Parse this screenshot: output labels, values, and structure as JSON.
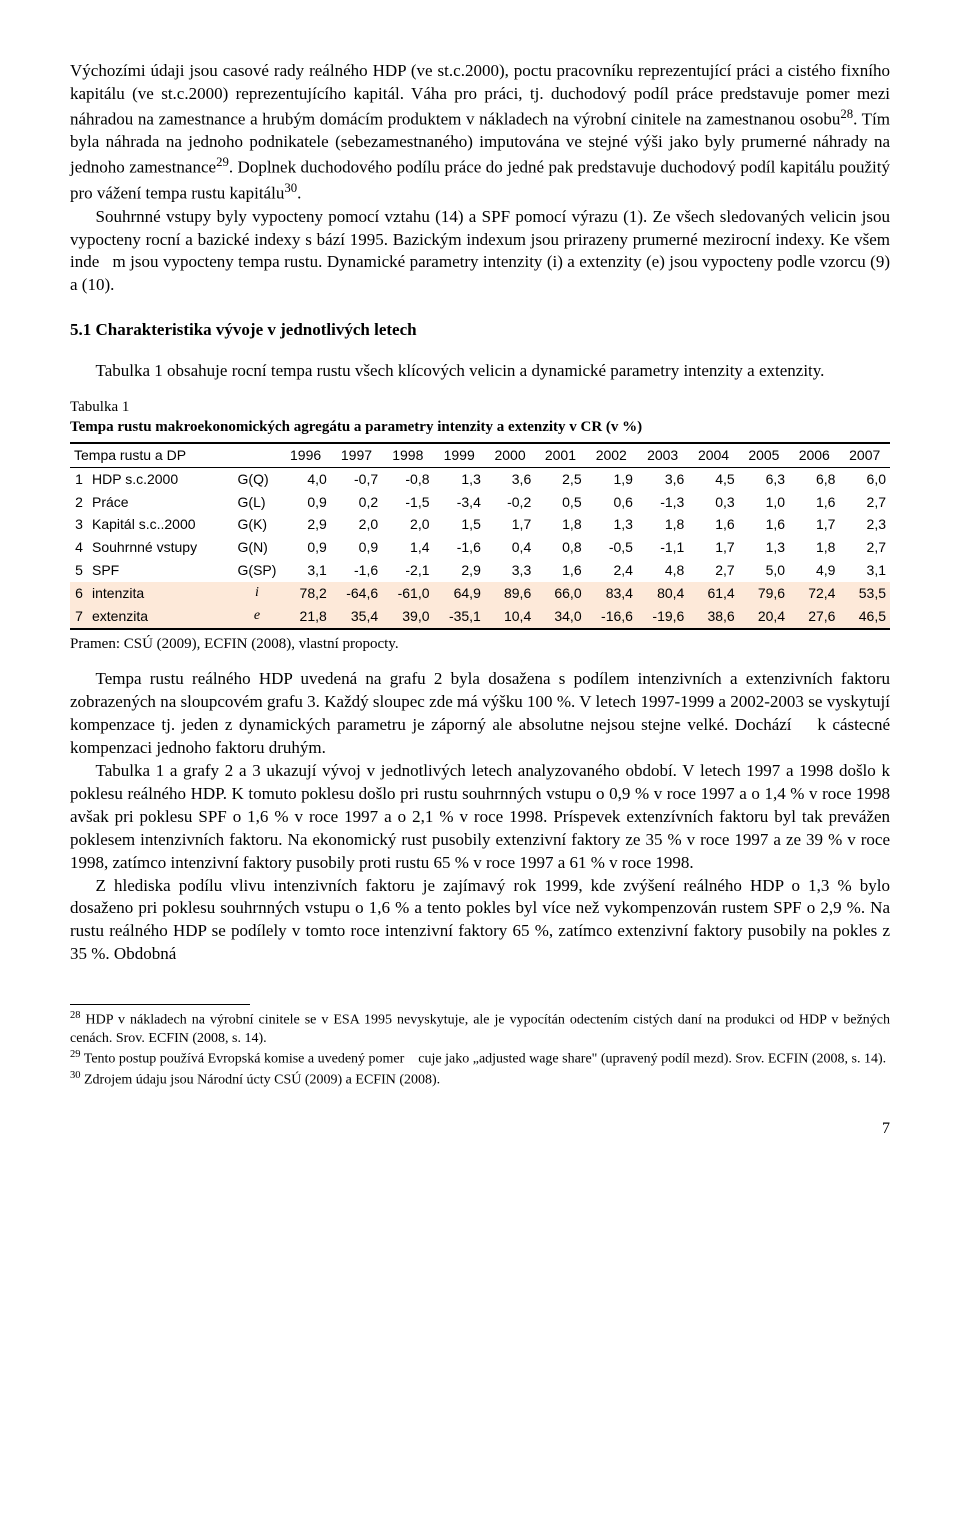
{
  "para1": "Výchozími údaji jsou casové rady reálného HDP (ve st.c.2000), poctu pracovníku reprezentující práci a cistého fixního kapitálu (ve st.c.2000) reprezentujícího kapitál. Váha pro práci, tj. duchodový podíl práce predstavuje pomer mezi náhradou na zamestnance a hrubým domácím produktem v nákladech na výrobní cinitele na zamestnanou osobu",
  "para1_sup": "28",
  "para1b": ". Tím byla náhrada na jednoho podnikatele (sebezamestnaného) imputována ve stejné výši jako byly prumerné náhrady na jednoho zamestnance",
  "para1_sup2": "29",
  "para1c": ". Doplnek duchodového podílu práce do jedné pak predstavuje duchodový podíl kapitálu použitý pro vážení tempa rustu kapitálu",
  "para1_sup3": "30",
  "para1d": ".",
  "para2": "Souhrnné vstupy byly vypocteny pomocí vztahu (14) a SPF pomocí výrazu (1). Ze všech sledovaných velicin jsou vypocteny rocní a bazické indexy s bází 1995. Bazickým indexum jsou prirazeny prumerné mezirocní indexy. Ke všem inde   m jsou vypocteny tempa rustu. Dynamické parametry intenzity (i) a extenzity (e) jsou vypocteny podle vzorcu (9) a (10).",
  "heading": "5.1 Charakteristika vývoje v jednotlivých letech",
  "para3": "Tabulka 1 obsahuje rocní tempa rustu všech klícových velicin a dynamické parametry intenzity a extenzity.",
  "table": {
    "caption": "Tabulka 1",
    "title": "Tempa rustu makroekonomických agregátu a parametry intenzity a extenzity v CR (v %)",
    "head_label": "Tempa rustu a DP",
    "years": [
      "1996",
      "1997",
      "1998",
      "1999",
      "2000",
      "2001",
      "2002",
      "2003",
      "2004",
      "2005",
      "2006",
      "2007"
    ],
    "rows": [
      {
        "idx": "1",
        "label": "HDP s.c.2000",
        "sym": "G(Q)",
        "vals": [
          "4,0",
          "-0,7",
          "-0,8",
          "1,3",
          "3,6",
          "2,5",
          "1,9",
          "3,6",
          "4,5",
          "6,3",
          "6,8",
          "6,0"
        ],
        "hl": false
      },
      {
        "idx": "2",
        "label": "Práce",
        "sym": "G(L)",
        "vals": [
          "0,9",
          "0,2",
          "-1,5",
          "-3,4",
          "-0,2",
          "0,5",
          "0,6",
          "-1,3",
          "0,3",
          "1,0",
          "1,6",
          "2,7"
        ],
        "hl": false
      },
      {
        "idx": "3",
        "label": "Kapitál s.c..2000",
        "sym": "G(K)",
        "vals": [
          "2,9",
          "2,0",
          "2,0",
          "1,5",
          "1,7",
          "1,8",
          "1,3",
          "1,8",
          "1,6",
          "1,6",
          "1,7",
          "2,3"
        ],
        "hl": false
      },
      {
        "idx": "4",
        "label": "Souhrnné vstupy",
        "sym": "G(N)",
        "vals": [
          "0,9",
          "0,9",
          "1,4",
          "-1,6",
          "0,4",
          "0,8",
          "-0,5",
          "-1,1",
          "1,7",
          "1,3",
          "1,8",
          "2,7"
        ],
        "hl": false
      },
      {
        "idx": "5",
        "label": "SPF",
        "sym": "G(SP)",
        "vals": [
          "3,1",
          "-1,6",
          "-2,1",
          "2,9",
          "3,3",
          "1,6",
          "2,4",
          "4,8",
          "2,7",
          "5,0",
          "4,9",
          "3,1"
        ],
        "hl": false
      },
      {
        "idx": "6",
        "label": "intenzita",
        "sym": "i",
        "vals": [
          "78,2",
          "-64,6",
          "-61,0",
          "64,9",
          "89,6",
          "66,0",
          "83,4",
          "80,4",
          "61,4",
          "79,6",
          "72,4",
          "53,5"
        ],
        "hl": true
      },
      {
        "idx": "7",
        "label": "extenzita",
        "sym": "e",
        "vals": [
          "21,8",
          "35,4",
          "39,0",
          "-35,1",
          "10,4",
          "34,0",
          "-16,6",
          "-19,6",
          "38,6",
          "20,4",
          "27,6",
          "46,5"
        ],
        "hl": true
      }
    ],
    "source": "Pramen: CSÚ (2009), ECFIN (2008), vlastní propocty.",
    "bg_highlight": "#fde9d9"
  },
  "para4": "Tempa rustu reálného HDP uvedená na grafu 2 byla dosažena s podílem intenzivních a extenzivních faktoru zobrazených na sloupcovém grafu 3. Každý sloupec zde má výšku 100 %. V letech 1997-1999 a 2002-2003 se vyskytují kompenzace tj. jeden z dynamických parametru je záporný ale absolutne nejsou stejne velké. Dochází    k cástecné kompenzaci jednoho faktoru druhým.",
  "para5": "Tabulka 1 a grafy 2 a 3 ukazují vývoj v jednotlivých letech analyzovaného období. V letech 1997 a 1998 došlo k poklesu reálného HDP. K tomuto poklesu došlo pri rustu souhrnných vstupu o 0,9 % v roce 1997 a o 1,4 % v roce 1998 avšak pri poklesu SPF o 1,6 % v roce 1997 a o 2,1 % v roce 1998. Príspevek extenzívních faktoru byl tak prevážen poklesem intenzivních faktoru. Na ekonomický rust pusobily extenzivní faktory ze 35 % v roce 1997 a ze 39 % v roce 1998, zatímco intenzivní faktory pusobily proti rustu 65 % v roce 1997 a 61 % v roce 1998.",
  "para6": "Z hlediska podílu vlivu intenzivních faktoru je zajímavý rok 1999, kde zvýšení reálného HDP o 1,3 % bylo dosaženo pri poklesu souhrnných vstupu o 1,6 % a tento pokles byl více než vykompenzován rustem SPF o 2,9 %. Na rustu reálného HDP se podílely v tomto roce intenzivní faktory 65 %, zatímco extenzivní faktory pusobily na pokles z 35 %. Obdobná",
  "footnotes": {
    "f28_sup": "28",
    "f28": " HDP v nákladech na výrobní cinitele se v ESA 1995 nevyskytuje, ale je vypocítán odectením cistých daní na produkci od HDP v bežných cenách. Srov. ECFIN (2008, s. 14).",
    "f29_sup": "29",
    "f29": " Tento postup používá Evropská komise a uvedený pomer    cuje jako „adjusted wage share\" (upravený podíl mezd). Srov. ECFIN (2008, s. 14).",
    "f30_sup": "30",
    "f30": " Zdrojem údaju jsou Národní úcty CSÚ (2009) a ECFIN (2008)."
  },
  "pagenum": "7"
}
